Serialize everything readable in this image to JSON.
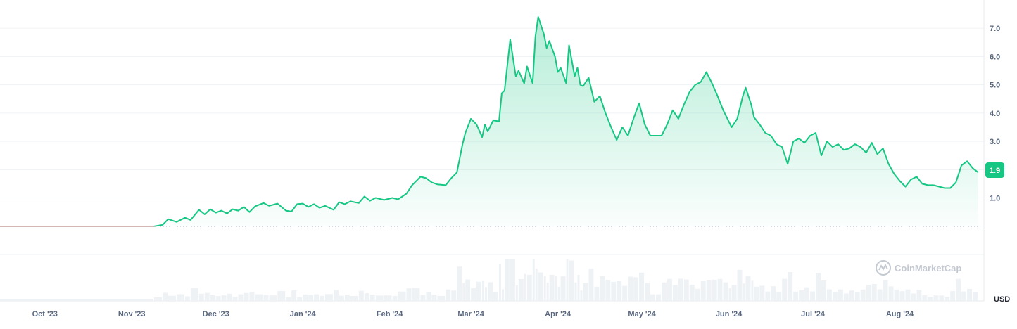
{
  "chart_data": {
    "type": "area",
    "currency_label": "USD",
    "current_price": 1.9,
    "current_price_label": "1.9",
    "brand": "CoinMarketCap",
    "baseline_value": 0,
    "ylim": [
      -1.0,
      7.8
    ],
    "y_ticks": [
      1.0,
      2.0,
      3.0,
      4.0,
      5.0,
      6.0,
      7.0
    ],
    "y_tick_labels": [
      "1.0",
      "2.0",
      "3.0",
      "4.0",
      "5.0",
      "6.0",
      "7.0"
    ],
    "x_ticks": [
      {
        "date": "2023-10-01",
        "label": "Oct '23"
      },
      {
        "date": "2023-11-01",
        "label": "Nov '23"
      },
      {
        "date": "2023-12-01",
        "label": "Dec '23"
      },
      {
        "date": "2024-01-01",
        "label": "Jan '24"
      },
      {
        "date": "2024-02-01",
        "label": "Feb '24"
      },
      {
        "date": "2024-03-01",
        "label": "Mar '24"
      },
      {
        "date": "2024-04-01",
        "label": "Apr '24"
      },
      {
        "date": "2024-05-01",
        "label": "May '24"
      },
      {
        "date": "2024-06-01",
        "label": "Jun '24"
      },
      {
        "date": "2024-07-01",
        "label": "Jul '24"
      },
      {
        "date": "2024-08-01",
        "label": "Aug '24"
      }
    ],
    "xlim": [
      "2023-09-15",
      "2024-08-31"
    ],
    "colors": {
      "line": "#16c784",
      "pre_listing_line": "#a86a6a",
      "volume": "#eff2f5",
      "grid": "#eff2f5",
      "badge": "#16c784",
      "axis_text": "#58667e"
    },
    "series": [
      {
        "values": [
          [
            "2023-09-15",
            0
          ],
          [
            "2023-11-09",
            0
          ],
          [
            "2023-11-12",
            0.05
          ],
          [
            "2023-11-14",
            0.25
          ],
          [
            "2023-11-17",
            0.15
          ],
          [
            "2023-11-20",
            0.3
          ],
          [
            "2023-11-22",
            0.22
          ],
          [
            "2023-11-25",
            0.58
          ],
          [
            "2023-11-27",
            0.42
          ],
          [
            "2023-11-29",
            0.6
          ],
          [
            "2023-12-01",
            0.48
          ],
          [
            "2023-12-03",
            0.55
          ],
          [
            "2023-12-05",
            0.45
          ],
          [
            "2023-12-07",
            0.6
          ],
          [
            "2023-12-09",
            0.55
          ],
          [
            "2023-12-11",
            0.68
          ],
          [
            "2023-12-13",
            0.5
          ],
          [
            "2023-12-15",
            0.7
          ],
          [
            "2023-12-18",
            0.82
          ],
          [
            "2023-12-20",
            0.72
          ],
          [
            "2023-12-23",
            0.8
          ],
          [
            "2023-12-26",
            0.55
          ],
          [
            "2023-12-28",
            0.52
          ],
          [
            "2023-12-30",
            0.78
          ],
          [
            "2024-01-01",
            0.8
          ],
          [
            "2024-01-03",
            0.68
          ],
          [
            "2024-01-05",
            0.78
          ],
          [
            "2024-01-07",
            0.65
          ],
          [
            "2024-01-09",
            0.72
          ],
          [
            "2024-01-12",
            0.58
          ],
          [
            "2024-01-14",
            0.85
          ],
          [
            "2024-01-16",
            0.78
          ],
          [
            "2024-01-18",
            0.88
          ],
          [
            "2024-01-21",
            0.82
          ],
          [
            "2024-01-23",
            1.05
          ],
          [
            "2024-01-25",
            0.9
          ],
          [
            "2024-01-27",
            1.0
          ],
          [
            "2024-01-30",
            0.93
          ],
          [
            "2024-02-02",
            1.0
          ],
          [
            "2024-02-04",
            0.95
          ],
          [
            "2024-02-07",
            1.15
          ],
          [
            "2024-02-09",
            1.45
          ],
          [
            "2024-02-12",
            1.75
          ],
          [
            "2024-02-14",
            1.7
          ],
          [
            "2024-02-16",
            1.55
          ],
          [
            "2024-02-18",
            1.48
          ],
          [
            "2024-02-21",
            1.45
          ],
          [
            "2024-02-23",
            1.7
          ],
          [
            "2024-02-25",
            1.9
          ],
          [
            "2024-02-27",
            2.9
          ],
          [
            "2024-02-28",
            3.3
          ],
          [
            "2024-03-01",
            3.8
          ],
          [
            "2024-03-03",
            3.6
          ],
          [
            "2024-03-05",
            3.15
          ],
          [
            "2024-03-06",
            3.6
          ],
          [
            "2024-03-07",
            3.35
          ],
          [
            "2024-03-09",
            3.75
          ],
          [
            "2024-03-11",
            3.7
          ],
          [
            "2024-03-12",
            4.7
          ],
          [
            "2024-03-13",
            4.8
          ],
          [
            "2024-03-15",
            6.6
          ],
          [
            "2024-03-17",
            5.3
          ],
          [
            "2024-03-18",
            5.5
          ],
          [
            "2024-03-20",
            5.05
          ],
          [
            "2024-03-21",
            5.65
          ],
          [
            "2024-03-23",
            5.05
          ],
          [
            "2024-03-24",
            6.7
          ],
          [
            "2024-03-25",
            7.4
          ],
          [
            "2024-03-27",
            6.8
          ],
          [
            "2024-03-28",
            6.3
          ],
          [
            "2024-03-29",
            6.55
          ],
          [
            "2024-03-31",
            6.0
          ],
          [
            "2024-04-01",
            5.45
          ],
          [
            "2024-04-02",
            5.6
          ],
          [
            "2024-04-04",
            5.05
          ],
          [
            "2024-04-05",
            6.4
          ],
          [
            "2024-04-07",
            5.3
          ],
          [
            "2024-04-08",
            5.6
          ],
          [
            "2024-04-09",
            5.0
          ],
          [
            "2024-04-10",
            4.95
          ],
          [
            "2024-04-12",
            5.25
          ],
          [
            "2024-04-14",
            4.4
          ],
          [
            "2024-04-16",
            4.6
          ],
          [
            "2024-04-18",
            4.0
          ],
          [
            "2024-04-20",
            3.5
          ],
          [
            "2024-04-22",
            3.05
          ],
          [
            "2024-04-24",
            3.5
          ],
          [
            "2024-04-26",
            3.2
          ],
          [
            "2024-04-28",
            3.8
          ],
          [
            "2024-04-30",
            4.35
          ],
          [
            "2024-05-02",
            3.6
          ],
          [
            "2024-05-04",
            3.2
          ],
          [
            "2024-05-06",
            3.2
          ],
          [
            "2024-05-08",
            3.2
          ],
          [
            "2024-05-10",
            3.6
          ],
          [
            "2024-05-12",
            4.1
          ],
          [
            "2024-05-14",
            3.8
          ],
          [
            "2024-05-16",
            4.3
          ],
          [
            "2024-05-18",
            4.75
          ],
          [
            "2024-05-20",
            5.0
          ],
          [
            "2024-05-22",
            5.1
          ],
          [
            "2024-05-24",
            5.45
          ],
          [
            "2024-05-26",
            5.05
          ],
          [
            "2024-05-28",
            4.6
          ],
          [
            "2024-05-30",
            4.1
          ],
          [
            "2024-06-01",
            3.7
          ],
          [
            "2024-06-02",
            3.5
          ],
          [
            "2024-06-04",
            3.8
          ],
          [
            "2024-06-06",
            4.6
          ],
          [
            "2024-06-07",
            4.9
          ],
          [
            "2024-06-09",
            4.3
          ],
          [
            "2024-06-10",
            3.85
          ],
          [
            "2024-06-12",
            3.6
          ],
          [
            "2024-06-14",
            3.3
          ],
          [
            "2024-06-16",
            3.2
          ],
          [
            "2024-06-18",
            2.9
          ],
          [
            "2024-06-20",
            2.8
          ],
          [
            "2024-06-22",
            2.2
          ],
          [
            "2024-06-24",
            3.0
          ],
          [
            "2024-06-26",
            3.1
          ],
          [
            "2024-06-28",
            2.95
          ],
          [
            "2024-06-30",
            3.2
          ],
          [
            "2024-07-02",
            3.3
          ],
          [
            "2024-07-04",
            2.5
          ],
          [
            "2024-07-06",
            3.0
          ],
          [
            "2024-07-08",
            2.8
          ],
          [
            "2024-07-10",
            2.9
          ],
          [
            "2024-07-12",
            2.7
          ],
          [
            "2024-07-14",
            2.75
          ],
          [
            "2024-07-16",
            2.9
          ],
          [
            "2024-07-18",
            2.8
          ],
          [
            "2024-07-20",
            2.6
          ],
          [
            "2024-07-22",
            2.95
          ],
          [
            "2024-07-24",
            2.55
          ],
          [
            "2024-07-26",
            2.75
          ],
          [
            "2024-07-28",
            2.2
          ],
          [
            "2024-07-30",
            1.85
          ],
          [
            "2024-08-01",
            1.6
          ],
          [
            "2024-08-03",
            1.4
          ],
          [
            "2024-08-05",
            1.65
          ],
          [
            "2024-08-07",
            1.75
          ],
          [
            "2024-08-09",
            1.5
          ],
          [
            "2024-08-11",
            1.45
          ],
          [
            "2024-08-13",
            1.45
          ],
          [
            "2024-08-15",
            1.4
          ],
          [
            "2024-08-17",
            1.35
          ],
          [
            "2024-08-19",
            1.35
          ],
          [
            "2024-08-21",
            1.55
          ],
          [
            "2024-08-23",
            2.15
          ],
          [
            "2024-08-25",
            2.3
          ],
          [
            "2024-08-27",
            2.05
          ],
          [
            "2024-08-29",
            1.9
          ]
        ]
      }
    ]
  }
}
